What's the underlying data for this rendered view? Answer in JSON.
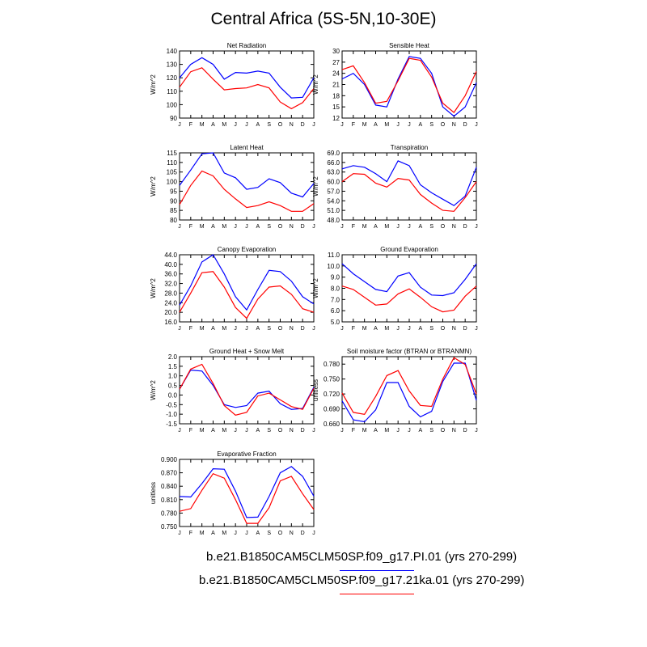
{
  "title": "Central Africa (5S-5N,10-30E)",
  "months": [
    "J",
    "F",
    "M",
    "A",
    "M",
    "J",
    "J",
    "A",
    "S",
    "O",
    "N",
    "D",
    "J"
  ],
  "colors": {
    "run1": "#0000ff",
    "run2": "#ff0000"
  },
  "legend": [
    {
      "label": "b.e21.B1850CAM5CLM50SP.f09_g17.PI.01 (yrs 270-299)",
      "color": "#0000ff"
    },
    {
      "label": "b.e21.B1850CAM5CLM50SP.f09_g17.21ka.01 (yrs 270-299)",
      "color": "#ff0000"
    }
  ],
  "chart_data": [
    {
      "type": "line",
      "title": "Net Radiation",
      "ylabel": "W/m^2",
      "ylim": [
        90,
        140
      ],
      "yticks": [
        "90",
        "100",
        "110",
        "120",
        "130",
        "140"
      ],
      "x": [
        "J",
        "F",
        "M",
        "A",
        "M",
        "J",
        "J",
        "A",
        "S",
        "O",
        "N",
        "D",
        "J"
      ],
      "series": [
        {
          "values": [
            120,
            130,
            135,
            130,
            119,
            124,
            123.5,
            125,
            123.5,
            113,
            105,
            105.5,
            120
          ]
        },
        {
          "values": [
            113,
            124.5,
            127.5,
            119,
            111,
            112,
            112.5,
            115,
            112.5,
            102,
            97,
            101.5,
            112
          ]
        }
      ]
    },
    {
      "type": "line",
      "title": "Sensible Heat",
      "ylabel": "W/m^2",
      "ylim": [
        12,
        30
      ],
      "yticks": [
        "12",
        "15",
        "18",
        "21",
        "24",
        "27",
        "30"
      ],
      "x": [
        "J",
        "F",
        "M",
        "A",
        "M",
        "J",
        "J",
        "A",
        "S",
        "O",
        "N",
        "D",
        "J"
      ],
      "series": [
        {
          "values": [
            22.5,
            24,
            21,
            15.5,
            15,
            22.5,
            28.5,
            28,
            24,
            15,
            12.5,
            15,
            21.5
          ]
        },
        {
          "values": [
            25,
            26,
            21.5,
            16,
            16.5,
            22,
            28,
            27.5,
            23,
            16,
            13.5,
            18,
            24.5
          ]
        }
      ]
    },
    {
      "type": "line",
      "title": "Latent Heat",
      "ylabel": "W/m^2",
      "ylim": [
        80,
        115
      ],
      "yticks": [
        "80",
        "85",
        "90",
        "95",
        "100",
        "105",
        "110",
        "115"
      ],
      "x": [
        "J",
        "F",
        "M",
        "A",
        "M",
        "J",
        "J",
        "A",
        "S",
        "O",
        "N",
        "D",
        "J"
      ],
      "series": [
        {
          "values": [
            98,
            106,
            114.5,
            115,
            104.5,
            102,
            96,
            97,
            101.5,
            99.5,
            94,
            92,
            99
          ]
        },
        {
          "values": [
            88,
            98,
            105.5,
            103,
            96,
            91,
            86.5,
            87.5,
            89.5,
            87.5,
            84.5,
            84.5,
            88.5
          ]
        }
      ]
    },
    {
      "type": "line",
      "title": "Transpiration",
      "ylabel": "W/m^2",
      "ylim": [
        48,
        69
      ],
      "yticks": [
        "48.0",
        "51.0",
        "54.0",
        "57.0",
        "60.0",
        "63.0",
        "66.0",
        "69.0"
      ],
      "x": [
        "J",
        "F",
        "M",
        "A",
        "M",
        "J",
        "J",
        "A",
        "S",
        "O",
        "N",
        "D",
        "J"
      ],
      "series": [
        {
          "values": [
            64,
            65,
            64.5,
            62.5,
            60,
            66.5,
            65,
            59,
            56.5,
            54.5,
            52.5,
            55.5,
            64.5
          ]
        },
        {
          "values": [
            60,
            62.5,
            62.3,
            59.5,
            58.3,
            61,
            60.5,
            56,
            53.3,
            51,
            50.7,
            55,
            60
          ]
        }
      ]
    },
    {
      "type": "line",
      "title": "Canopy Evaporation",
      "ylabel": "W/m^2",
      "ylim": [
        16,
        44
      ],
      "yticks": [
        "16.0",
        "20.0",
        "24.0",
        "28.0",
        "32.0",
        "36.0",
        "40.0",
        "44.0"
      ],
      "x": [
        "J",
        "F",
        "M",
        "A",
        "M",
        "J",
        "J",
        "A",
        "S",
        "O",
        "N",
        "D",
        "J"
      ],
      "series": [
        {
          "values": [
            23,
            31,
            41,
            44,
            36,
            26.5,
            21,
            29.5,
            37.5,
            37,
            33,
            26.5,
            23.5
          ]
        },
        {
          "values": [
            20,
            28,
            36.5,
            37,
            30.5,
            22,
            17.5,
            25.5,
            30.5,
            31,
            27.5,
            21.5,
            20
          ]
        }
      ]
    },
    {
      "type": "line",
      "title": "Ground Evaporation",
      "ylabel": "W/m^2",
      "ylim": [
        5,
        11
      ],
      "yticks": [
        "5.0",
        "6.0",
        "7.0",
        "8.0",
        "9.0",
        "10.0",
        "11.0"
      ],
      "x": [
        "J",
        "F",
        "M",
        "A",
        "M",
        "J",
        "J",
        "A",
        "S",
        "O",
        "N",
        "D",
        "J"
      ],
      "series": [
        {
          "values": [
            10.2,
            9.3,
            8.6,
            7.9,
            7.7,
            9.1,
            9.4,
            8.1,
            7.4,
            7.35,
            7.6,
            8.8,
            10.2
          ]
        },
        {
          "values": [
            8.2,
            7.9,
            7.2,
            6.5,
            6.6,
            7.5,
            7.95,
            7.2,
            6.35,
            5.9,
            6.05,
            7.3,
            8.2
          ]
        }
      ]
    },
    {
      "type": "line",
      "title": "Ground Heat + Snow Melt",
      "ylabel": "W/m^2",
      "ylim": [
        -1.5,
        2.0
      ],
      "yticks": [
        "-1.5",
        "-1.0",
        "-0.5",
        "0.0",
        "0.5",
        "1.0",
        "1.5",
        "2.0"
      ],
      "x": [
        "J",
        "F",
        "M",
        "A",
        "M",
        "J",
        "J",
        "A",
        "S",
        "O",
        "N",
        "D",
        "J"
      ],
      "series": [
        {
          "values": [
            0.3,
            1.3,
            1.25,
            0.5,
            -0.5,
            -0.65,
            -0.55,
            0.1,
            0.2,
            -0.45,
            -0.75,
            -0.7,
            0.4
          ]
        },
        {
          "values": [
            0.3,
            1.35,
            1.6,
            0.6,
            -0.55,
            -1.05,
            -0.9,
            -0.05,
            0.1,
            -0.25,
            -0.6,
            -0.75,
            0.35
          ]
        }
      ]
    },
    {
      "type": "line",
      "title": "Soil moisture factor (BTRAN or BTRANMN)",
      "ylabel": "unitless",
      "ylim": [
        0.66,
        0.795
      ],
      "yticks": [
        "0.660",
        "0.690",
        "0.720",
        "0.750",
        "0.780"
      ],
      "x": [
        "J",
        "F",
        "M",
        "A",
        "M",
        "J",
        "J",
        "A",
        "S",
        "O",
        "N",
        "D",
        "J"
      ],
      "series": [
        {
          "values": [
            0.706,
            0.668,
            0.664,
            0.688,
            0.743,
            0.743,
            0.695,
            0.674,
            0.685,
            0.745,
            0.782,
            0.782,
            0.707
          ]
        },
        {
          "values": [
            0.722,
            0.683,
            0.679,
            0.715,
            0.757,
            0.767,
            0.726,
            0.697,
            0.695,
            0.75,
            0.793,
            0.779,
            0.72
          ]
        }
      ]
    },
    {
      "type": "line",
      "title": "Evaporative Fraction",
      "ylabel": "unitless",
      "ylim": [
        0.75,
        0.9
      ],
      "yticks": [
        "0.750",
        "0.780",
        "0.810",
        "0.840",
        "0.870",
        "0.900"
      ],
      "x": [
        "J",
        "F",
        "M",
        "A",
        "M",
        "J",
        "J",
        "A",
        "S",
        "O",
        "N",
        "D",
        "J"
      ],
      "series": [
        {
          "values": [
            0.817,
            0.816,
            0.846,
            0.879,
            0.878,
            0.829,
            0.77,
            0.771,
            0.817,
            0.87,
            0.884,
            0.862,
            0.818
          ]
        },
        {
          "values": [
            0.784,
            0.79,
            0.831,
            0.868,
            0.858,
            0.81,
            0.757,
            0.757,
            0.792,
            0.852,
            0.862,
            0.823,
            0.788
          ]
        }
      ]
    }
  ]
}
